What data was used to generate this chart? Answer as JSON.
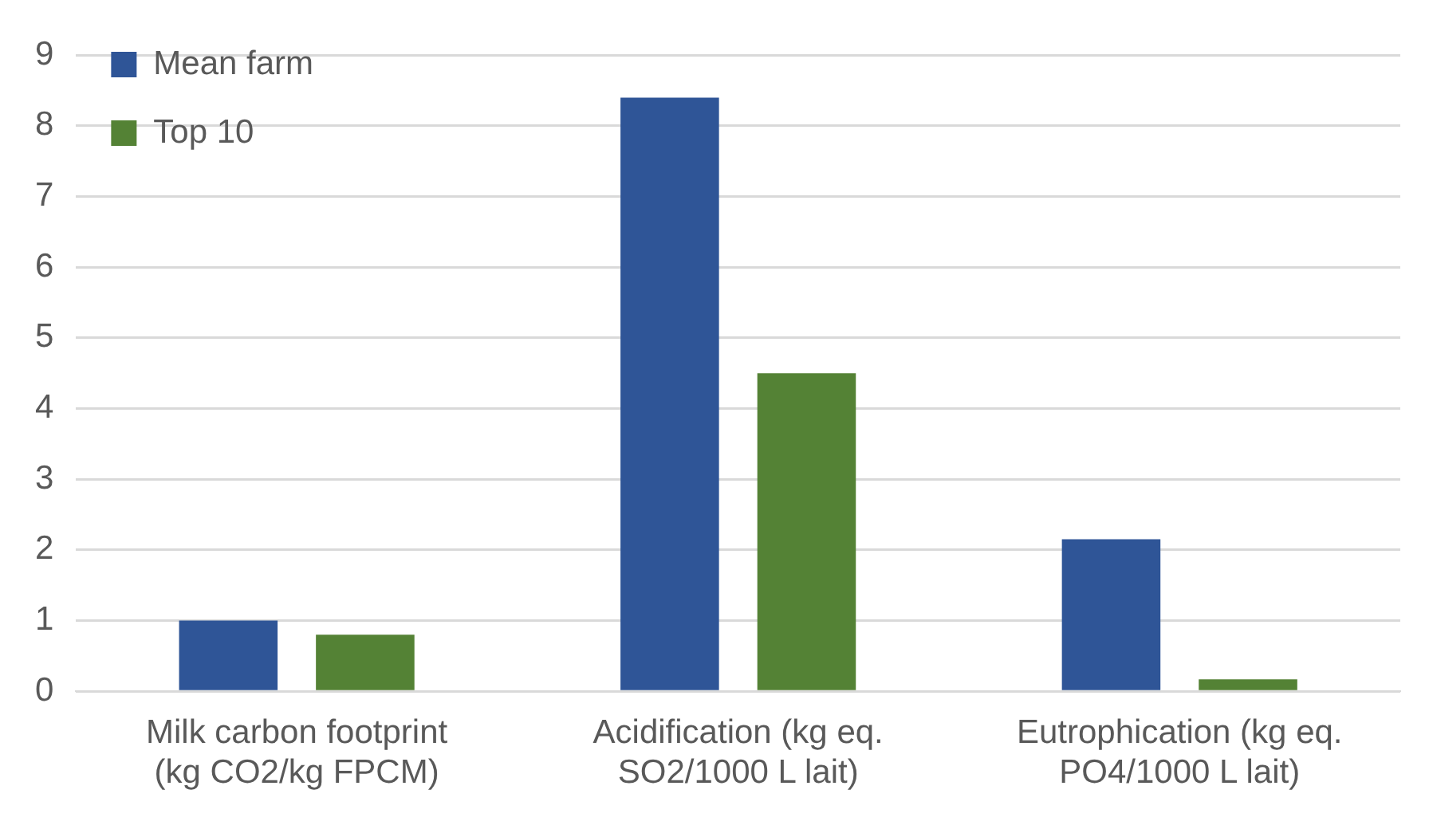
{
  "chart_data": {
    "type": "bar",
    "categories": [
      "Milk carbon footprint (kg CO2/kg FPCM)",
      "Acidification (kg eq. SO2/1000 L lait)",
      "Eutrophication (kg eq. PO4/1000 L lait)"
    ],
    "series": [
      {
        "name": "Mean farm",
        "color": "#2f5597",
        "values": [
          1.0,
          8.4,
          2.15
        ]
      },
      {
        "name": "Top 10",
        "color": "#548235",
        "values": [
          0.8,
          4.5,
          0.17
        ]
      }
    ],
    "ylim": [
      0,
      9
    ],
    "yticks": [
      0,
      1,
      2,
      3,
      4,
      5,
      6,
      7,
      8,
      9
    ],
    "grid": "y",
    "legend": "top left"
  }
}
